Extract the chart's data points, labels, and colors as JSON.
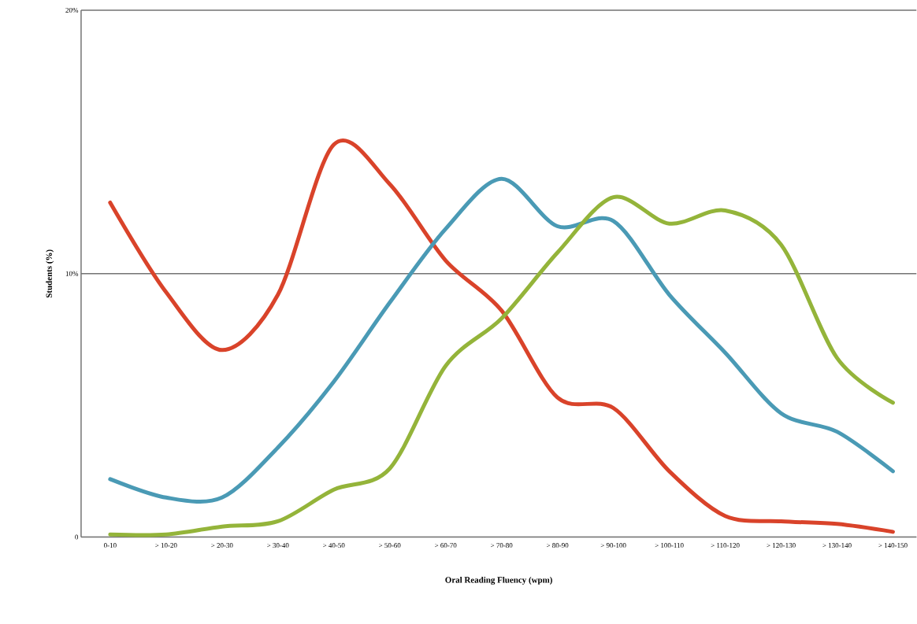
{
  "chart_data": {
    "type": "line",
    "xlabel": "Oral Reading Fluency (wpm)",
    "ylabel": "Students (%)",
    "categories": [
      "0-10",
      "> 10-20",
      "> 20-30",
      "> 30-40",
      "> 40-50",
      "> 50-60",
      "> 60-70",
      "> 70-80",
      "> 80-90",
      "> 90-100",
      "> 100-110",
      "> 110-120",
      "> 120-130",
      "> 130-140",
      "> 140-150"
    ],
    "series": [
      {
        "color": "#d9432a",
        "values": [
          12.7,
          9.3,
          7.1,
          9.2,
          14.9,
          13.4,
          10.5,
          8.6,
          5.3,
          4.9,
          2.5,
          0.8,
          0.6,
          0.5,
          0.2
        ]
      },
      {
        "color": "#4a9ab5",
        "values": [
          2.2,
          1.5,
          1.5,
          3.4,
          5.9,
          8.9,
          11.7,
          13.6,
          11.8,
          12.0,
          9.2,
          7.0,
          4.7,
          4.0,
          2.5
        ]
      },
      {
        "color": "#94b43a",
        "values": [
          0.1,
          0.1,
          0.4,
          0.6,
          1.8,
          2.6,
          6.5,
          8.3,
          10.8,
          12.9,
          11.9,
          12.4,
          11.1,
          6.8,
          5.1
        ]
      }
    ],
    "ylim": [
      0,
      20
    ],
    "yticks": [
      0,
      {
        "value": 10,
        "label": "10%"
      },
      {
        "value": 20,
        "label": "20%"
      }
    ],
    "grid": "y",
    "marker": "none"
  }
}
